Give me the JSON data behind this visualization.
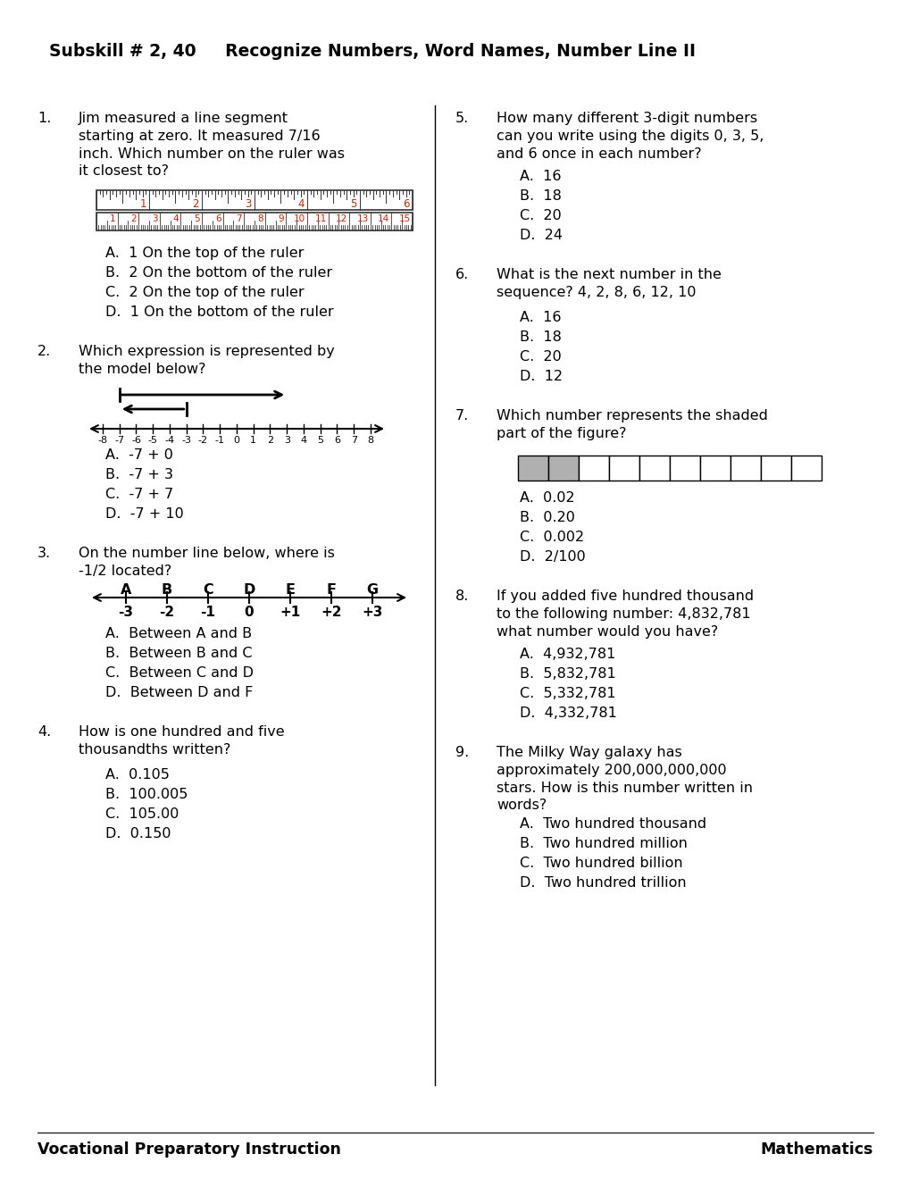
{
  "title": "Subskill # 2, 40     Recognize Numbers, Word Names, Number Line II",
  "bg_color": "#ffffff",
  "text_color": "#000000",
  "red_color": "#cc2200",
  "q1": {
    "num": "1.",
    "text": "Jim measured a line segment\nstarting at zero. It measured 7/16\ninch. Which number on the ruler was\nit closest to?",
    "answers": [
      "A.  1 On the top of the ruler",
      "B.  2 On the bottom of the ruler",
      "C.  2 On the top of the ruler",
      "D.  1 On the bottom of the ruler"
    ]
  },
  "q2": {
    "num": "2.",
    "text": "Which expression is represented by\nthe model below?",
    "answers": [
      "A.  -7 + 0",
      "B.  -7 + 3",
      "C.  -7 + 7",
      "D.  -7 + 10"
    ]
  },
  "q3": {
    "num": "3.",
    "text": "On the number line below, where is\n-1/2 located?",
    "answers": [
      "A.  Between A and B",
      "B.  Between B and C",
      "C.  Between C and D",
      "D.  Between D and F"
    ]
  },
  "q4": {
    "num": "4.",
    "text": "How is one hundred and five\nthousandths written?",
    "answers": [
      "A.  0.105",
      "B.  100.005",
      "C.  105.00",
      "D.  0.150"
    ]
  },
  "q5": {
    "num": "5.",
    "text": "How many different 3-digit numbers\ncan you write using the digits 0, 3, 5,\nand 6 once in each number?",
    "answers": [
      "A.  16",
      "B.  18",
      "C.  20",
      "D.  24"
    ]
  },
  "q6": {
    "num": "6.",
    "text": "What is the next number in the\nsequence? 4, 2, 8, 6, 12, 10",
    "answers": [
      "A.  16",
      "B.  18",
      "C.  20",
      "D.  12"
    ]
  },
  "q7": {
    "num": "7.",
    "text": "Which number represents the shaded\npart of the figure?",
    "answers": [
      "A.  0.02",
      "B.  0.20",
      "C.  0.002",
      "D.  2/100"
    ]
  },
  "q8": {
    "num": "8.",
    "text": "If you added five hundred thousand\nto the following number: 4,832,781\nwhat number would you have?",
    "answers": [
      "A.  4,932,781",
      "B.  5,832,781",
      "C.  5,332,781",
      "D.  4,332,781"
    ]
  },
  "q9": {
    "num": "9.",
    "text": "The Milky Way galaxy has\napproximately 200,000,000,000\nstars. How is this number written in\nwords?",
    "answers": [
      "A.  Two hundred thousand",
      "B.  Two hundred million",
      "C.  Two hundred billion",
      "D.  Two hundred trillion"
    ]
  },
  "footer_left": "Vocational Preparatory Instruction",
  "footer_right": "Mathematics"
}
